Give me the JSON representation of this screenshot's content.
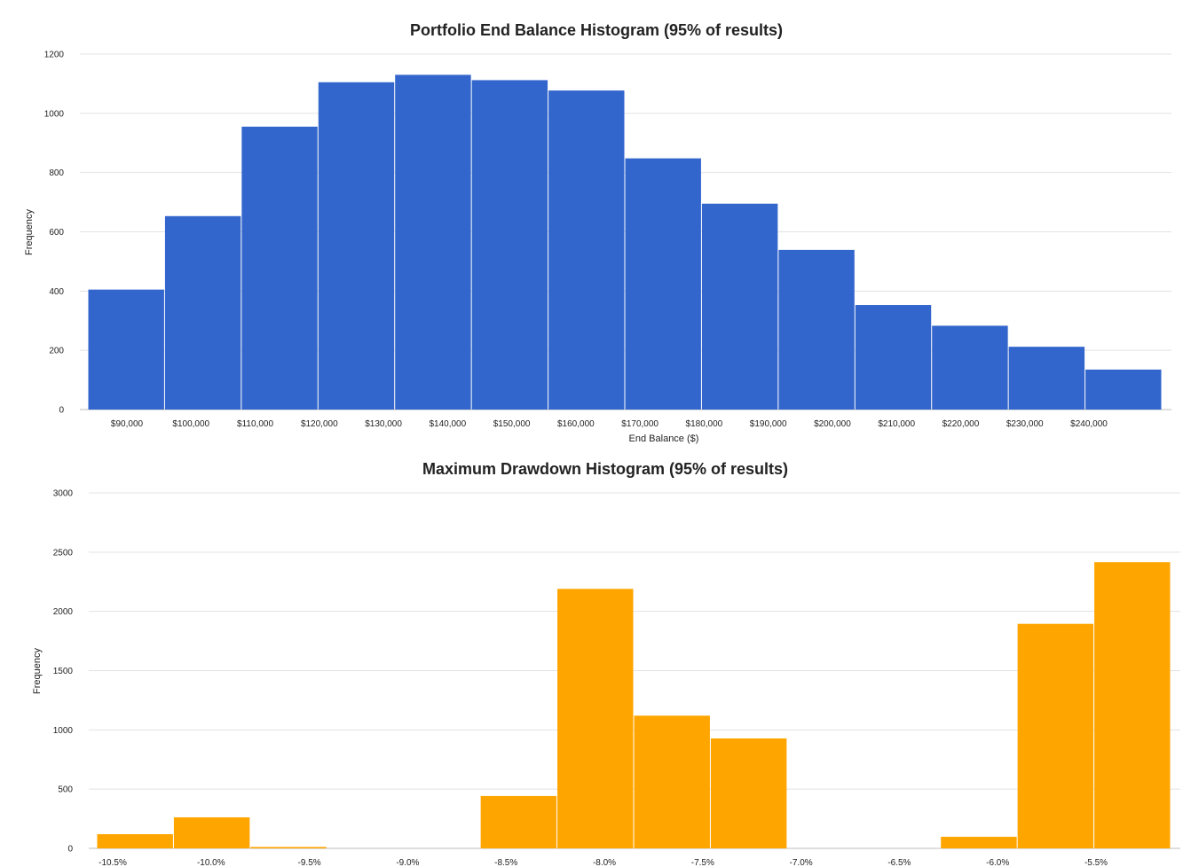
{
  "chart_data": [
    {
      "type": "bar",
      "title": "Portfolio End Balance Histogram (95% of results)",
      "xlabel": "End Balance ($)",
      "ylabel": "Frequency",
      "ylim": [
        0,
        1200
      ],
      "yticks": [
        "0",
        "200",
        "400",
        "600",
        "800",
        "1000",
        "1200"
      ],
      "xticks": [
        "$90,000",
        "$100,000",
        "$110,000",
        "$120,000",
        "$130,000",
        "$140,000",
        "$150,000",
        "$160,000",
        "$170,000",
        "$180,000",
        "$190,000",
        "$200,000",
        "$210,000",
        "$220,000",
        "$230,000",
        "$240,000"
      ],
      "xtick_values": [
        90000,
        100000,
        110000,
        120000,
        130000,
        140000,
        150000,
        160000,
        170000,
        180000,
        190000,
        200000,
        210000,
        220000,
        230000,
        240000
      ],
      "bin_edges": [
        83800,
        95750,
        107700,
        119650,
        131600,
        143550,
        155500,
        167450,
        179400,
        191350,
        203300,
        215250,
        227200,
        239150,
        251100
      ],
      "values": [
        405,
        653,
        955,
        1105,
        1130,
        1112,
        1077,
        848,
        695,
        539,
        353,
        283,
        212,
        135
      ],
      "grid": true,
      "color": "#3366cc"
    },
    {
      "type": "bar",
      "title": "Maximum Drawdown Histogram (95% of results)",
      "xlabel": "",
      "ylabel": "Frequency",
      "ylim": [
        0,
        3000
      ],
      "yticks": [
        "0",
        "500",
        "1000",
        "1500",
        "2000",
        "2500",
        "3000"
      ],
      "xticks": [
        "-10.5%",
        "-10.0%",
        "-9.5%",
        "-9.0%",
        "-8.5%",
        "-8.0%",
        "-7.5%",
        "-7.0%",
        "-6.5%",
        "-6.0%",
        "-5.5%"
      ],
      "xtick_values": [
        -10.5,
        -10.0,
        -9.5,
        -9.0,
        -8.5,
        -8.0,
        -7.5,
        -7.0,
        -6.5,
        -6.0,
        -5.5
      ],
      "bin_edges": [
        -10.6,
        -10.21,
        -9.82,
        -9.43,
        -9.04,
        -8.65,
        -8.26,
        -7.87,
        -7.48,
        -7.09,
        -6.7,
        -6.31,
        -5.92,
        -5.53,
        -5.14
      ],
      "values": [
        120,
        262,
        12,
        0,
        0,
        442,
        2190,
        1120,
        928,
        0,
        0,
        98,
        1895,
        2415
      ],
      "grid": true,
      "color": "#ffa500"
    }
  ]
}
